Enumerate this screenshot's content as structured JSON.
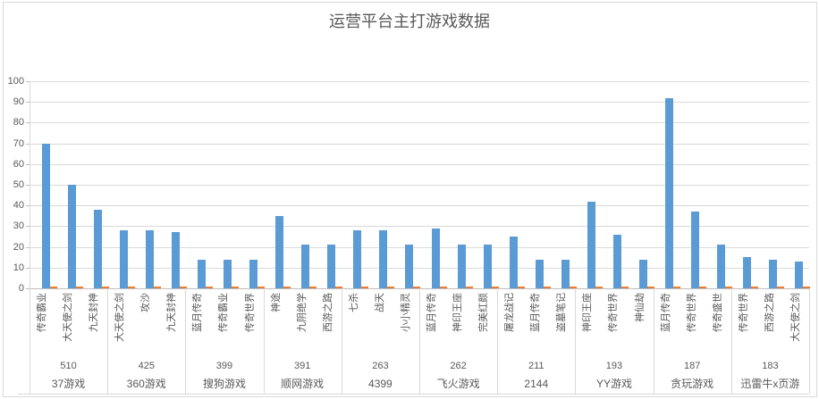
{
  "colors": {
    "bar_primary": "#5b9bd5",
    "bar_secondary": "#ed7d31",
    "gridline": "#d9d9d9",
    "axis_line": "#bfbfbf",
    "text": "#595959"
  },
  "chart_data": {
    "type": "bar",
    "title": "运营平台主打游戏数据",
    "xlabel": "",
    "ylabel": "",
    "ylim": [
      0,
      100
    ],
    "y_ticks": [
      100,
      90,
      80,
      70,
      60,
      50,
      40,
      30,
      20,
      10,
      0
    ],
    "grid": true,
    "legend_position": "none",
    "series_names": [
      "primary",
      "secondary"
    ],
    "groups": [
      {
        "platform": "37游戏",
        "number": "510",
        "games": [
          {
            "name": "传奇霸业",
            "value": 70,
            "secondary": 0.5
          },
          {
            "name": "大天使之剑",
            "value": 50,
            "secondary": 0.5
          },
          {
            "name": "九天封神",
            "value": 38,
            "secondary": 0.5
          }
        ]
      },
      {
        "platform": "360游戏",
        "number": "425",
        "games": [
          {
            "name": "大天使之剑",
            "value": 28,
            "secondary": 0.5
          },
          {
            "name": "攻沙",
            "value": 28,
            "secondary": 0.5
          },
          {
            "name": "九天封神",
            "value": 27,
            "secondary": 0.5
          }
        ]
      },
      {
        "platform": "搜狗游戏",
        "number": "399",
        "games": [
          {
            "name": "蓝月传奇",
            "value": 14,
            "secondary": 0.5
          },
          {
            "name": "传奇霸业",
            "value": 14,
            "secondary": 0.5
          },
          {
            "name": "传奇世界",
            "value": 14,
            "secondary": 0.5
          }
        ]
      },
      {
        "platform": "顺网游戏",
        "number": "391",
        "games": [
          {
            "name": "神途",
            "value": 35,
            "secondary": 0.5
          },
          {
            "name": "九阴绝学",
            "value": 21,
            "secondary": 0.5
          },
          {
            "name": "西游之路",
            "value": 21,
            "secondary": 0.5
          }
        ]
      },
      {
        "platform": "4399",
        "number": "263",
        "games": [
          {
            "name": "七杀",
            "value": 28,
            "secondary": 0.5
          },
          {
            "name": "战天",
            "value": 28,
            "secondary": 0.5
          },
          {
            "name": "小小精灵",
            "value": 21,
            "secondary": 0.5
          }
        ]
      },
      {
        "platform": "飞火游戏",
        "number": "262",
        "games": [
          {
            "name": "蓝月传奇",
            "value": 29,
            "secondary": 0.5
          },
          {
            "name": "神印王座",
            "value": 21,
            "secondary": 0.5
          },
          {
            "name": "完美红颜",
            "value": 21,
            "secondary": 0.5
          }
        ]
      },
      {
        "platform": "2144",
        "number": "211",
        "games": [
          {
            "name": "屠龙战记",
            "value": 25,
            "secondary": 0.5
          },
          {
            "name": "蓝月传奇",
            "value": 14,
            "secondary": 0.5
          },
          {
            "name": "盗墓笔记",
            "value": 14,
            "secondary": 0.5
          }
        ]
      },
      {
        "platform": "YY游戏",
        "number": "193",
        "games": [
          {
            "name": "神印王座",
            "value": 42,
            "secondary": 0.5
          },
          {
            "name": "传奇世界",
            "value": 26,
            "secondary": 0.5
          },
          {
            "name": "神仙劫",
            "value": 14,
            "secondary": 0.5
          }
        ]
      },
      {
        "platform": "贪玩游戏",
        "number": "187",
        "games": [
          {
            "name": "蓝月传奇",
            "value": 92,
            "secondary": 0.5
          },
          {
            "name": "传奇世界",
            "value": 37,
            "secondary": 0.5
          },
          {
            "name": "传奇盛世",
            "value": 21,
            "secondary": 0.5
          }
        ]
      },
      {
        "platform": "迅雷牛x页游",
        "number": "183",
        "games": [
          {
            "name": "传奇世界",
            "value": 15,
            "secondary": 0.5
          },
          {
            "name": "西游之路",
            "value": 14,
            "secondary": 0.5
          },
          {
            "name": "大天使之剑",
            "value": 13,
            "secondary": 0.5
          }
        ]
      }
    ]
  }
}
